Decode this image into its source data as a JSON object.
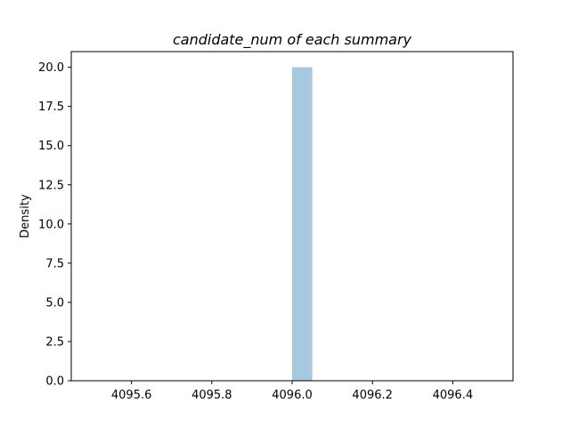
{
  "chart_data": {
    "type": "bar",
    "title": "candidate_num of each summary",
    "xlabel": "",
    "ylabel": "Density",
    "xlim": [
      4095.45,
      4096.55
    ],
    "ylim": [
      0,
      21
    ],
    "x_ticks": [
      4095.6,
      4095.8,
      4096.0,
      4096.2,
      4096.4
    ],
    "x_tick_labels": [
      "4095.6",
      "4095.8",
      "4096.0",
      "4096.2",
      "4096.4"
    ],
    "y_ticks": [
      0,
      2.5,
      5,
      7.5,
      10,
      12.5,
      15,
      17.5,
      20
    ],
    "y_tick_labels": [
      "0.0",
      "2.5",
      "5.0",
      "7.5",
      "10.0",
      "12.5",
      "15.0",
      "17.5",
      "20.0"
    ],
    "bins": [
      {
        "x_start": 4096.0,
        "x_end": 4096.05,
        "value": 20
      }
    ],
    "bar_color": "#a6c9df",
    "grid": false,
    "legend": "none"
  }
}
